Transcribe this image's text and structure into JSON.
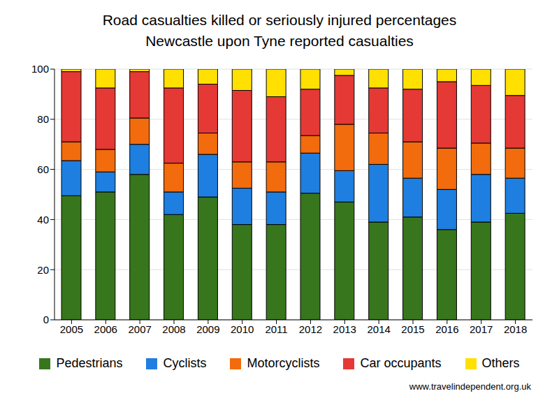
{
  "chart_data": {
    "type": "bar",
    "title": "Road casualties killed or seriously injured percentages",
    "subtitle": "Newcastle upon Tyne reported casualties",
    "source": "www.travelindependent.org.uk",
    "categories": [
      "2005",
      "2006",
      "2007",
      "2008",
      "2009",
      "2010",
      "2011",
      "2012",
      "2013",
      "2014",
      "2015",
      "2016",
      "2017",
      "2018"
    ],
    "series": [
      {
        "name": "Pedestrians",
        "color": "#38761d",
        "values": [
          49.5,
          51,
          58,
          42,
          49,
          38,
          38,
          50.5,
          47,
          39,
          41,
          36,
          39,
          42.5
        ]
      },
      {
        "name": "Cyclists",
        "color": "#1e7fe0",
        "values": [
          14,
          8,
          12,
          9,
          17,
          14.5,
          13,
          16,
          12.5,
          23,
          15.5,
          16,
          19,
          14
        ]
      },
      {
        "name": "Motorcyclists",
        "color": "#f26b0c",
        "values": [
          7.5,
          9,
          10.5,
          11.5,
          8.5,
          10.5,
          12,
          7,
          18.5,
          12.5,
          14.5,
          16.5,
          12.5,
          12
        ]
      },
      {
        "name": "Car occupants",
        "color": "#e53935",
        "values": [
          28,
          24.5,
          18.5,
          30,
          19.5,
          28.5,
          26,
          18.5,
          19.5,
          18,
          21,
          26.5,
          23,
          21
        ]
      },
      {
        "name": "Others",
        "color": "#ffe000",
        "values": [
          1,
          7.5,
          1,
          7.5,
          6,
          8.5,
          11,
          8,
          2.5,
          7.5,
          8,
          5,
          6.5,
          10.5
        ]
      }
    ],
    "stacked": true,
    "ylim": [
      0,
      100
    ],
    "yticks": [
      0,
      20,
      40,
      60,
      80,
      100
    ],
    "grid": true,
    "legend": "bottom"
  }
}
